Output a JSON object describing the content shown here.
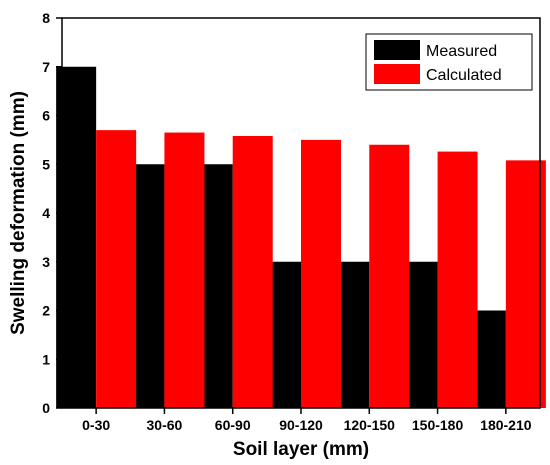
{
  "chart_data": {
    "type": "bar",
    "categories": [
      "0-30",
      "30-60",
      "60-90",
      "90-120",
      "120-150",
      "150-180",
      "180-210"
    ],
    "series": [
      {
        "name": "Measured",
        "color": "#000000",
        "values": [
          7,
          5,
          5,
          3,
          3,
          3,
          2
        ]
      },
      {
        "name": "Calculated",
        "color": "#ff0000",
        "values": [
          5.7,
          5.65,
          5.58,
          5.5,
          5.4,
          5.26,
          5.08
        ]
      }
    ],
    "xlabel": "Soil layer (mm)",
    "ylabel": "Swelling deformation (mm)",
    "ylim": [
      0,
      8
    ],
    "yticks": [
      0,
      1,
      2,
      3,
      4,
      5,
      6,
      7,
      8
    ],
    "grid": false,
    "legend_position": "top-right"
  }
}
